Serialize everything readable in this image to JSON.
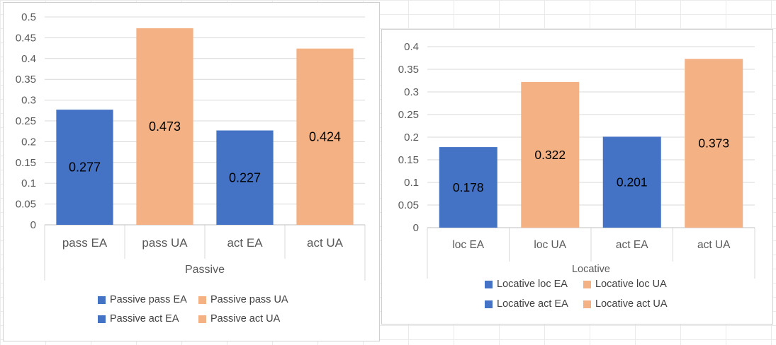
{
  "colors": {
    "ea": "#4472c4",
    "ua": "#f4b183"
  },
  "chart_data": [
    {
      "type": "bar",
      "group_label": "Passive",
      "categories": [
        "pass EA",
        "pass UA",
        "act EA",
        "act UA"
      ],
      "values": [
        0.277,
        0.473,
        0.227,
        0.424
      ],
      "data_labels": [
        "0.277",
        "0.473",
        "0.227",
        "0.424"
      ],
      "ylim": [
        0,
        0.5
      ],
      "yticks": [
        "0",
        "0.05",
        "0.1",
        "0.15",
        "0.2",
        "0.25",
        "0.3",
        "0.35",
        "0.4",
        "0.45",
        "0.5"
      ],
      "grid": true,
      "legend_position": "bottom",
      "legend": [
        "Passive pass EA",
        "Passive pass UA",
        "Passive act EA",
        "Passive act UA"
      ],
      "bar_colors": [
        "#4472c4",
        "#f4b183",
        "#4472c4",
        "#f4b183"
      ]
    },
    {
      "type": "bar",
      "group_label": "Locative",
      "categories": [
        "loc EA",
        "loc UA",
        "act EA",
        "act UA"
      ],
      "values": [
        0.178,
        0.322,
        0.201,
        0.373
      ],
      "data_labels": [
        "0.178",
        "0.322",
        "0.201",
        "0.373"
      ],
      "ylim": [
        0,
        0.4
      ],
      "yticks": [
        "0",
        "0.05",
        "0.1",
        "0.15",
        "0.2",
        "0.25",
        "0.3",
        "0.35",
        "0.4"
      ],
      "grid": true,
      "legend_position": "bottom",
      "legend": [
        "Locative loc EA",
        "Locative loc UA",
        "Locative act EA",
        "Locative act UA"
      ],
      "bar_colors": [
        "#4472c4",
        "#f4b183",
        "#4472c4",
        "#f4b183"
      ]
    }
  ]
}
